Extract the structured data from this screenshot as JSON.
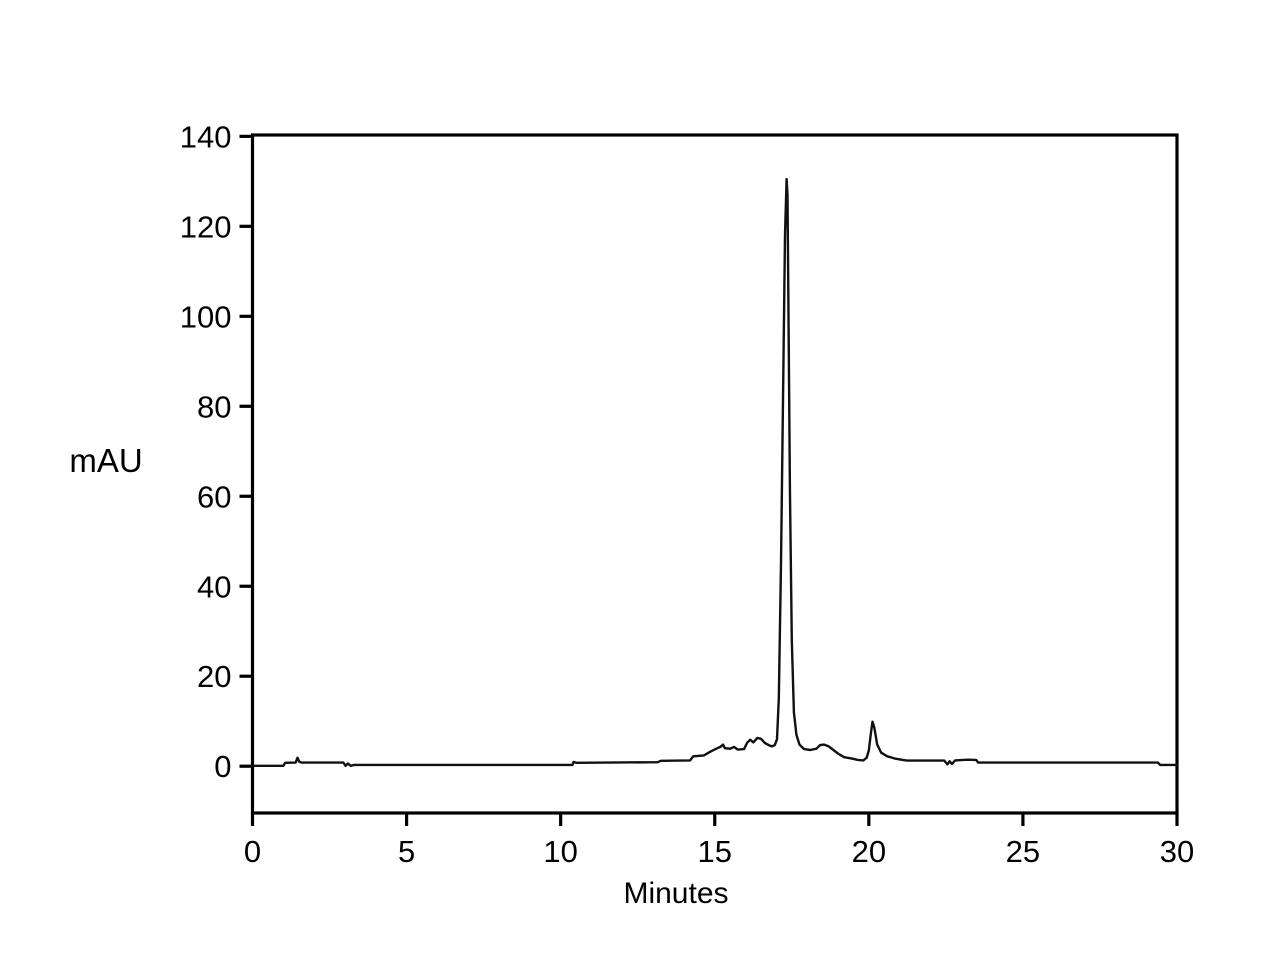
{
  "figure": {
    "background": "#ffffff",
    "frame_color": "#000000",
    "trace_color": "#111111"
  },
  "axes": {
    "x_label": "Minutes",
    "y_label": "mAU",
    "x_tick_labels": [
      "0",
      "5",
      "10",
      "15",
      "20",
      "25",
      "30"
    ],
    "y_tick_labels": [
      "0",
      "20",
      "40",
      "60",
      "80",
      "100",
      "120",
      "140"
    ]
  },
  "chart_data": {
    "type": "line",
    "title": "",
    "xlabel": "Minutes",
    "ylabel": "mAU",
    "xlim": [
      0,
      30
    ],
    "ylim": [
      -10.4,
      140.3
    ],
    "x_ticks": [
      0,
      5,
      10,
      15,
      20,
      25,
      30
    ],
    "y_ticks": [
      0,
      20,
      40,
      60,
      80,
      100,
      120,
      140
    ],
    "grid": false,
    "legend": false,
    "frame": "full-box",
    "peaks": [
      {
        "time_min": 17.34,
        "height_mAU": 130.5,
        "label": "main peak"
      },
      {
        "time_min": 20.1,
        "height_mAU": 9.9,
        "label": "minor peak"
      },
      {
        "time_min": 16.4,
        "height_mAU": 6.3,
        "label": "small cluster bump"
      },
      {
        "time_min": 15.27,
        "height_mAU": 4.8,
        "label": "small cluster bump"
      },
      {
        "time_min": 18.55,
        "height_mAU": 4.8,
        "label": "post-peak bump"
      },
      {
        "time_min": 1.46,
        "height_mAU": 1.9,
        "label": "early blip"
      }
    ],
    "series": [
      {
        "name": "UV absorbance trace",
        "color": "#111111",
        "points": [
          [
            0,
            0.1
          ],
          [
            1.0,
            0.1
          ],
          [
            1.06,
            0.75
          ],
          [
            1.4,
            0.8
          ],
          [
            1.46,
            1.9
          ],
          [
            1.52,
            1.0
          ],
          [
            1.6,
            0.8
          ],
          [
            2.95,
            0.8
          ],
          [
            3.02,
            0.1
          ],
          [
            3.1,
            0.6
          ],
          [
            3.18,
            0.1
          ],
          [
            3.3,
            0.3
          ],
          [
            10.38,
            0.3
          ],
          [
            10.42,
            0.95
          ],
          [
            10.5,
            0.75
          ],
          [
            13.15,
            0.9
          ],
          [
            13.25,
            1.2
          ],
          [
            14.2,
            1.3
          ],
          [
            14.3,
            2.2
          ],
          [
            14.65,
            2.4
          ],
          [
            14.85,
            3.2
          ],
          [
            15.05,
            3.9
          ],
          [
            15.18,
            4.3
          ],
          [
            15.27,
            4.8
          ],
          [
            15.33,
            4.0
          ],
          [
            15.5,
            3.9
          ],
          [
            15.62,
            4.3
          ],
          [
            15.75,
            3.7
          ],
          [
            15.95,
            3.8
          ],
          [
            16.05,
            5.2
          ],
          [
            16.15,
            5.9
          ],
          [
            16.25,
            5.3
          ],
          [
            16.38,
            6.3
          ],
          [
            16.5,
            6.1
          ],
          [
            16.62,
            5.2
          ],
          [
            16.75,
            4.7
          ],
          [
            16.85,
            4.4
          ],
          [
            16.95,
            4.7
          ],
          [
            17.02,
            6.0
          ],
          [
            17.08,
            15
          ],
          [
            17.15,
            45
          ],
          [
            17.22,
            85
          ],
          [
            17.28,
            118
          ],
          [
            17.33,
            130.5
          ],
          [
            17.36,
            127
          ],
          [
            17.4,
            95
          ],
          [
            17.44,
            62
          ],
          [
            17.5,
            28
          ],
          [
            17.57,
            12
          ],
          [
            17.65,
            7
          ],
          [
            17.75,
            4.8
          ],
          [
            17.9,
            3.8
          ],
          [
            18.1,
            3.6
          ],
          [
            18.3,
            3.9
          ],
          [
            18.42,
            4.7
          ],
          [
            18.55,
            4.8
          ],
          [
            18.7,
            4.4
          ],
          [
            18.85,
            3.6
          ],
          [
            19.0,
            2.8
          ],
          [
            19.2,
            2.0
          ],
          [
            19.45,
            1.7
          ],
          [
            19.65,
            1.4
          ],
          [
            19.82,
            1.3
          ],
          [
            19.93,
            1.9
          ],
          [
            20.0,
            3.5
          ],
          [
            20.07,
            7.5
          ],
          [
            20.12,
            9.9
          ],
          [
            20.18,
            8.5
          ],
          [
            20.27,
            4.8
          ],
          [
            20.4,
            3.0
          ],
          [
            20.6,
            2.2
          ],
          [
            20.85,
            1.7
          ],
          [
            21.1,
            1.4
          ],
          [
            21.25,
            1.25
          ],
          [
            22.45,
            1.25
          ],
          [
            22.55,
            0.4
          ],
          [
            22.62,
            1.1
          ],
          [
            22.7,
            0.5
          ],
          [
            22.8,
            1.3
          ],
          [
            23.2,
            1.45
          ],
          [
            23.48,
            1.4
          ],
          [
            23.55,
            0.8
          ],
          [
            29.38,
            0.8
          ],
          [
            29.45,
            0.3
          ],
          [
            30,
            0.3
          ]
        ]
      }
    ]
  }
}
